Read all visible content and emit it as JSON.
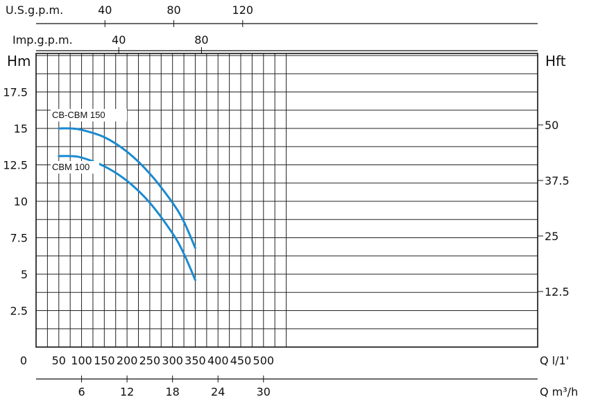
{
  "chart_data": {
    "type": "line",
    "x_unit_label": "Q l/1'",
    "x_secondary_label": "Q m³/h",
    "y_left_label": "Hm",
    "y_right_label": "Hft",
    "top_axis_usgpm_label": "U.S.g.p.m.",
    "top_axis_impgpm_label": "Imp.g.p.m.",
    "x_ticks_lpm": [
      "0",
      "50",
      "100",
      "150",
      "200",
      "250",
      "300",
      "350",
      "400",
      "450",
      "500"
    ],
    "x_ticks_m3h": [
      "6",
      "12",
      "18",
      "24",
      "30"
    ],
    "y_ticks_left": [
      "2.5",
      "5",
      "7.5",
      "10",
      "12.5",
      "15",
      "17.5"
    ],
    "y_ticks_right": [
      "12.5",
      "25",
      "37.5",
      "50"
    ],
    "top_ticks_usgpm": [
      "40",
      "80",
      "120"
    ],
    "top_ticks_impgpm": [
      "40",
      "80"
    ],
    "xlim": [
      0,
      550
    ],
    "ylim": [
      0,
      20
    ],
    "grid": true,
    "color": "#1a8ad0",
    "series": [
      {
        "name": "CB-CBM 150",
        "x": [
          50,
          75,
          100,
          150,
          200,
          250,
          300,
          325,
          350
        ],
        "y": [
          15.0,
          15.0,
          14.9,
          14.4,
          13.4,
          11.9,
          9.9,
          8.6,
          6.8
        ]
      },
      {
        "name": "CBM 100",
        "x": [
          50,
          75,
          100,
          150,
          200,
          250,
          300,
          325,
          350
        ],
        "y": [
          13.1,
          13.1,
          13.0,
          12.4,
          11.4,
          9.9,
          7.8,
          6.4,
          4.6
        ]
      }
    ]
  }
}
